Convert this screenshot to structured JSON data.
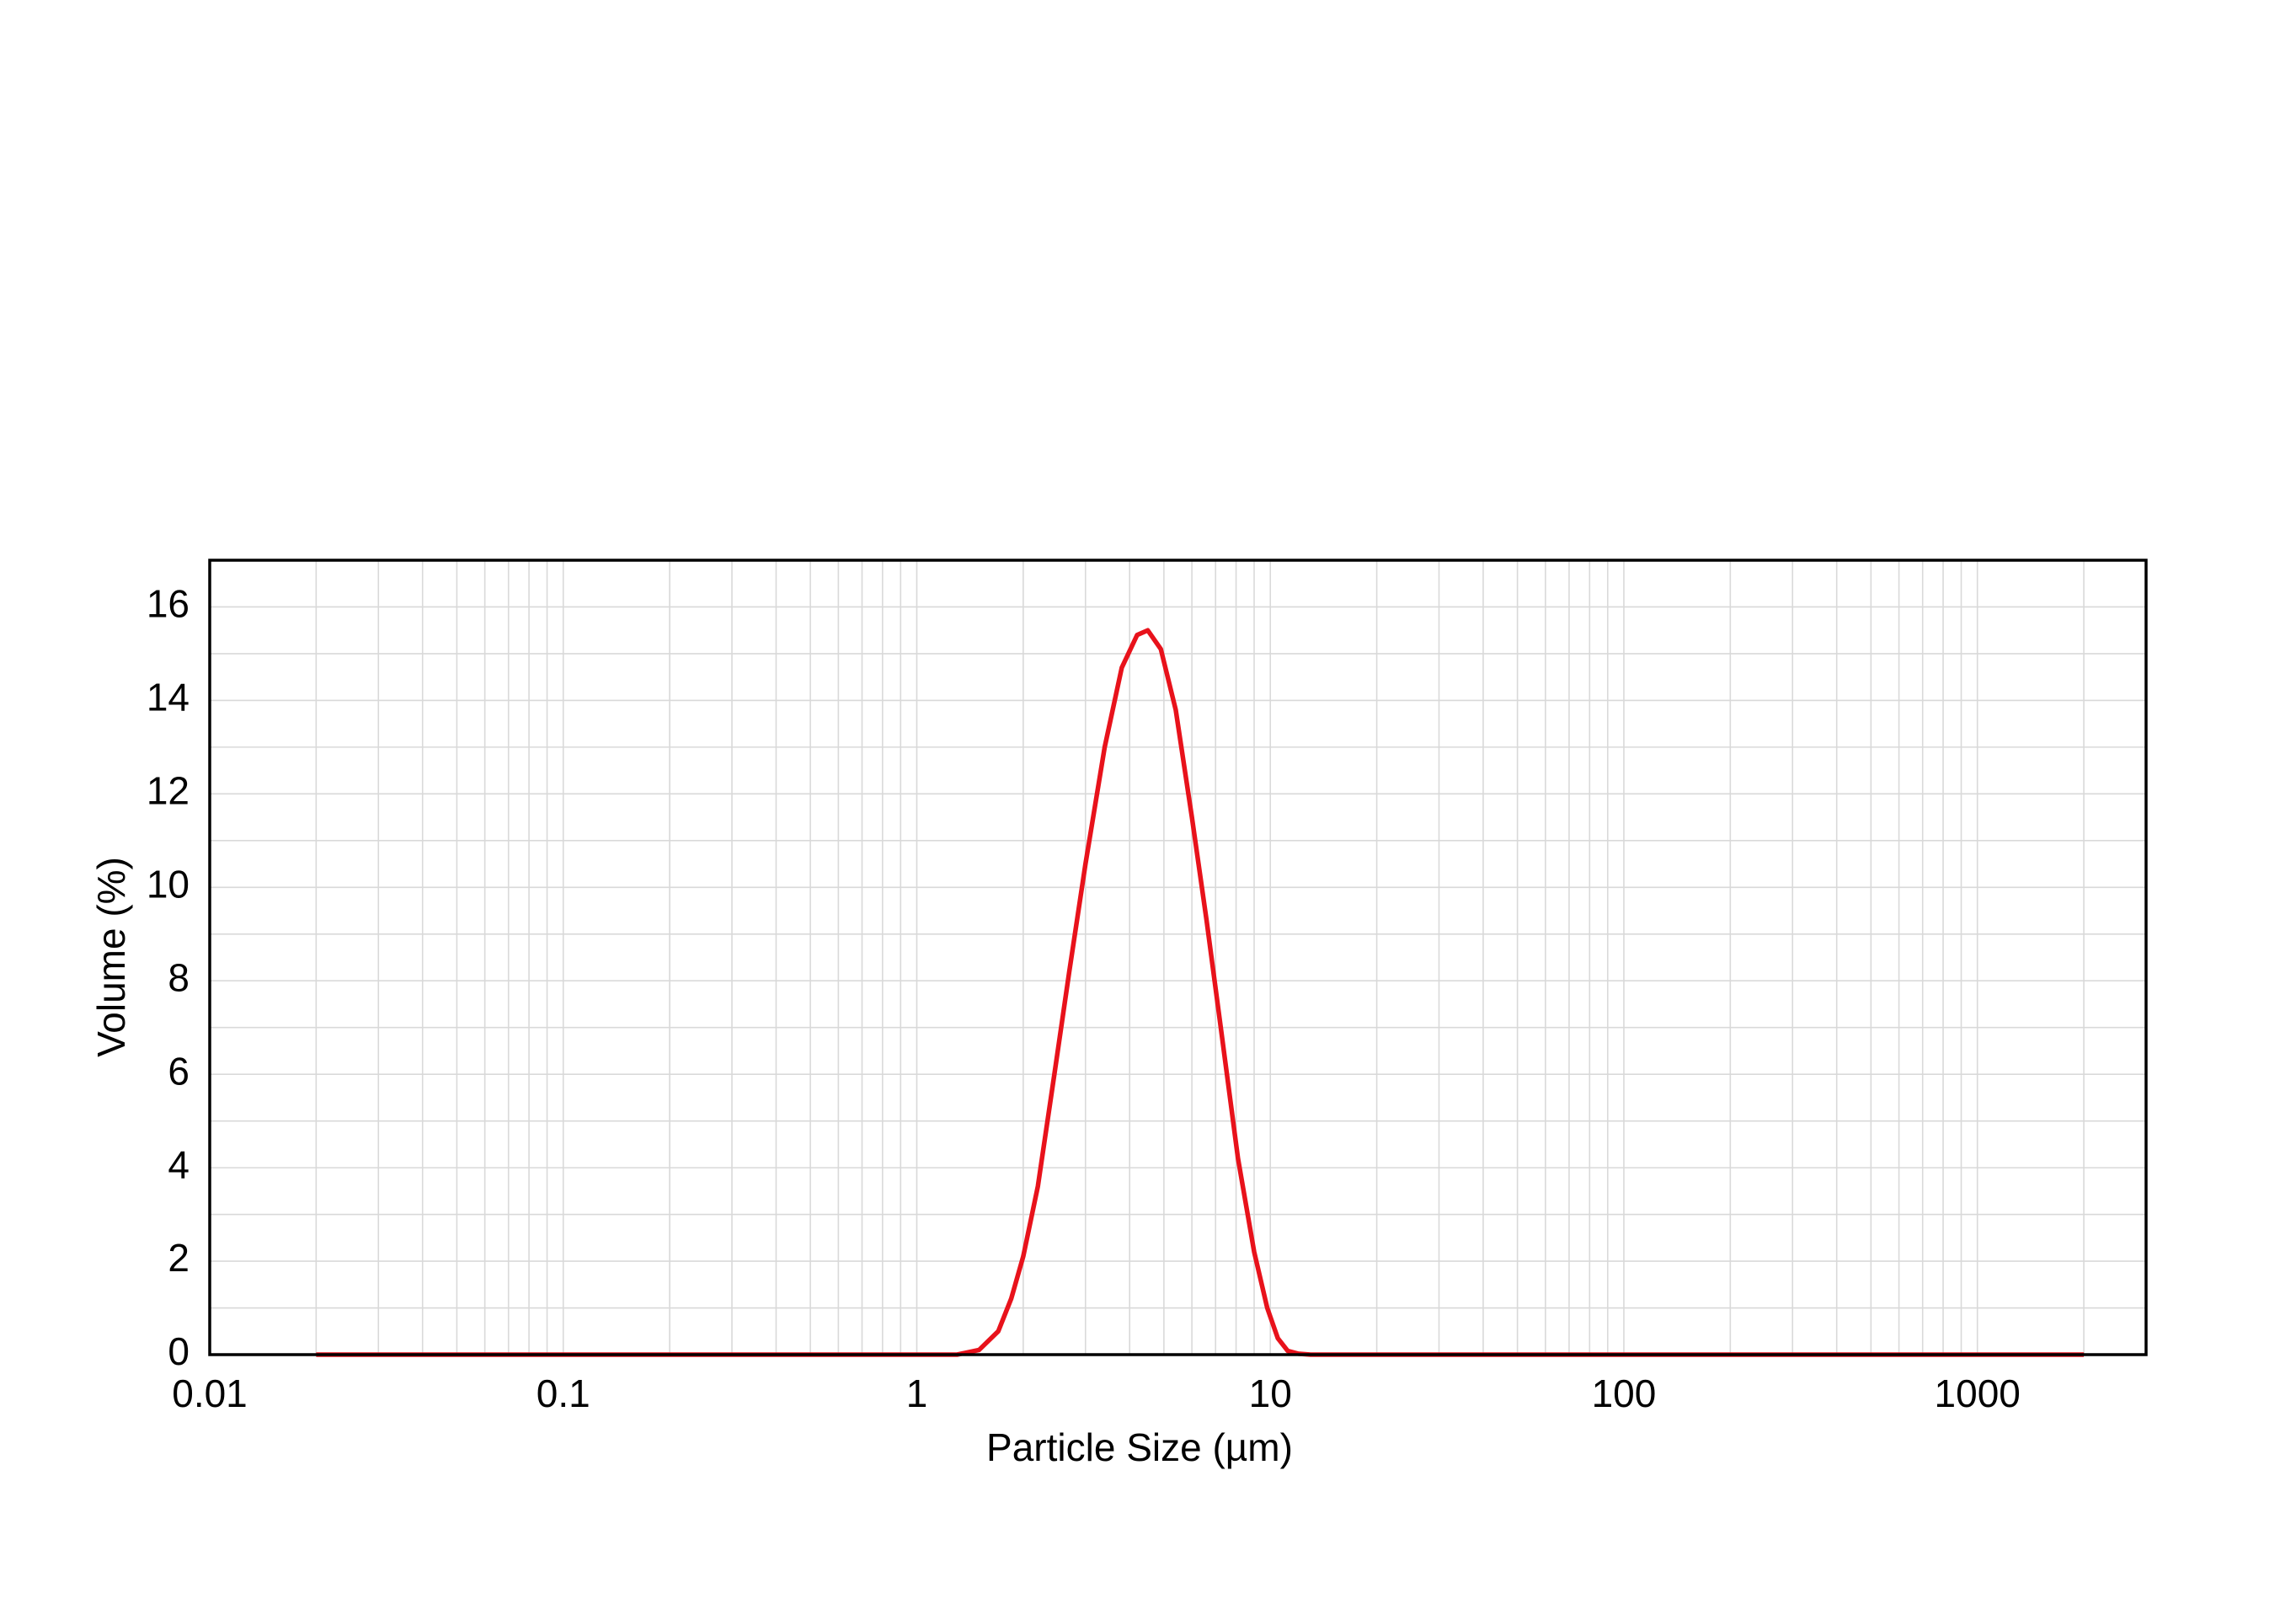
{
  "chart_data": {
    "type": "line",
    "x_label": "Particle Size (µm)",
    "y_label": "Volume (%)",
    "x": [
      0.02,
      1.3,
      1.5,
      1.7,
      1.85,
      2.0,
      2.2,
      2.45,
      2.7,
      3.0,
      3.4,
      3.8,
      4.2,
      4.5,
      4.9,
      5.4,
      6.0,
      6.6,
      7.3,
      8.1,
      9.0,
      9.8,
      10.5,
      11.2,
      12,
      13,
      2000
    ],
    "series": [
      {
        "name": "Volume",
        "color": "#e8121b",
        "values": [
          0,
          0,
          0.1,
          0.5,
          1.2,
          2.1,
          3.6,
          6,
          8.2,
          10.5,
          13,
          14.7,
          15.4,
          15.5,
          15.1,
          13.8,
          11.5,
          9.3,
          6.8,
          4.2,
          2.2,
          1.0,
          0.35,
          0.08,
          0.02,
          0,
          0
        ]
      }
    ],
    "xscale": "log",
    "xlim": [
      0.01,
      3000
    ],
    "xticks": [
      0.01,
      0.1,
      1,
      10,
      100,
      1000
    ],
    "ylim": [
      0,
      17
    ],
    "yticks": [
      0,
      2,
      4,
      6,
      8,
      10,
      12,
      14,
      16
    ],
    "grid": true,
    "minor_grid": true
  }
}
